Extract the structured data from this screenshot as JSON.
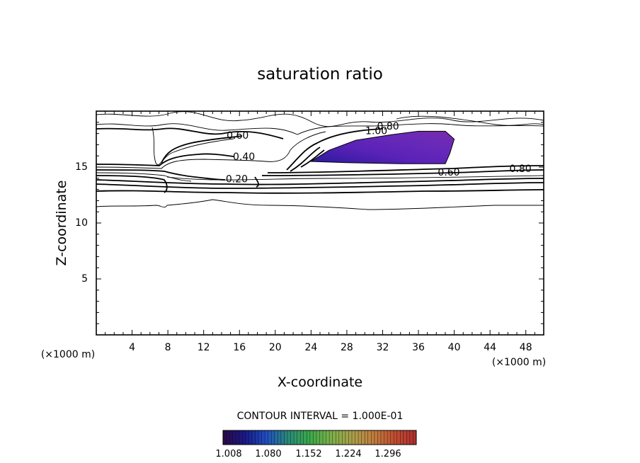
{
  "chart_data": {
    "type": "contour",
    "title": "saturation ratio",
    "xlabel": "X-coordinate",
    "ylabel": "Z-coordinate",
    "x_unit": "(×1000 m)",
    "y_unit": "(×1000 m)",
    "xlim": [
      0,
      50
    ],
    "ylim": [
      0,
      20
    ],
    "x_ticks": [
      4,
      8,
      12,
      16,
      20,
      24,
      28,
      32,
      36,
      40,
      44,
      48
    ],
    "y_ticks": [
      5,
      10,
      15
    ],
    "contour_interval_text": "CONTOUR INTERVAL = 1.000E-01",
    "contour_labels": [
      {
        "text": "0.60",
        "x": 15.8,
        "y": 17.8
      },
      {
        "text": "0.80",
        "x": 32.6,
        "y": 18.6
      },
      {
        "text": "1.00",
        "x": 31.3,
        "y": 18.2
      },
      {
        "text": "0.40",
        "x": 16.5,
        "y": 15.9
      },
      {
        "text": "0.20",
        "x": 15.7,
        "y": 13.9
      },
      {
        "text": "0.60",
        "x": 39.4,
        "y": 14.5
      },
      {
        "text": "0.80",
        "x": 47.4,
        "y": 14.8
      }
    ],
    "shaded_region": {
      "description_level": ">1.00",
      "outline": [
        [
          24,
          15.5
        ],
        [
          26,
          16.5
        ],
        [
          29,
          17.4
        ],
        [
          33,
          17.9
        ],
        [
          36,
          18.2
        ],
        [
          39,
          18.2
        ],
        [
          40,
          17.5
        ],
        [
          39.5,
          16.2
        ],
        [
          39,
          15.3
        ],
        [
          34,
          15.3
        ],
        [
          28,
          15.4
        ],
        [
          24,
          15.5
        ]
      ]
    },
    "colorbar": {
      "colors": [
        "#2a0a4a",
        "#1a1a8a",
        "#2050c0",
        "#2a8a7a",
        "#3aa84a",
        "#7ab04a",
        "#a8a04a",
        "#c08040",
        "#c05030",
        "#b03030"
      ],
      "tick_labels": [
        "1.008",
        "1.080",
        "1.152",
        "1.224",
        "1.296"
      ]
    },
    "grid": false
  }
}
